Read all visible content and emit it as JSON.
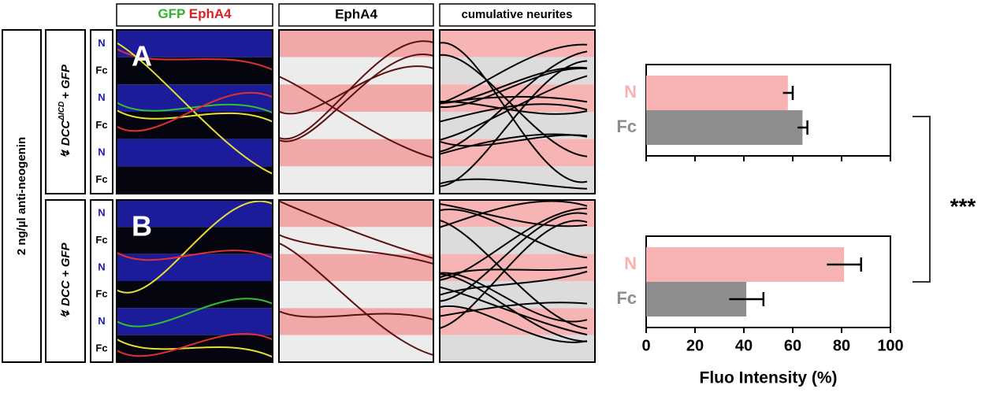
{
  "figure": {
    "header_gfp": "GFP",
    "header_epha4_red": "EphA4",
    "header_epha4": "EphA4",
    "header_neurites": "cumulative neurites",
    "side_label": "2 ng/µl anti-neogenin",
    "panel_a": {
      "letter": "A",
      "label": "↯ DCC",
      "superscript": "ΔICD",
      "label_end": "+ GFP",
      "rows": [
        "N",
        "Fc",
        "N",
        "Fc",
        "N",
        "Fc"
      ]
    },
    "panel_b": {
      "letter": "B",
      "label": "↯ DCC + GFP",
      "rows": [
        "N",
        "Fc",
        "N",
        "Fc",
        "N",
        "Fc"
      ]
    }
  },
  "chart_data": {
    "type": "bar",
    "orientation": "horizontal",
    "panels": [
      {
        "categories": [
          "N",
          "Fc"
        ],
        "values": [
          58,
          64
        ],
        "errors": [
          2,
          2
        ]
      },
      {
        "categories": [
          "N",
          "Fc"
        ],
        "values": [
          81,
          41
        ],
        "errors": [
          7,
          7
        ]
      }
    ],
    "colors": [
      "#f7b3b3",
      "#8e8e8e"
    ],
    "xlim": [
      0,
      100
    ],
    "xticks": [
      0,
      20,
      40,
      60,
      80,
      100
    ],
    "xlabel": "Fluo Intensity (%)",
    "annotation": "***"
  }
}
